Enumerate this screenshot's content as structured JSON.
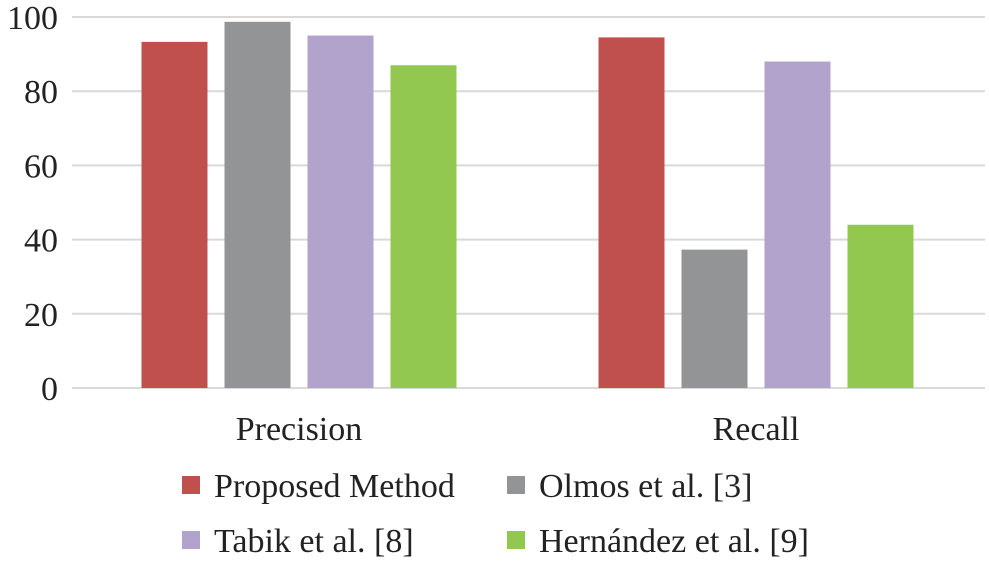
{
  "chart_data": {
    "type": "bar",
    "categories": [
      "Precision",
      "Recall"
    ],
    "series": [
      {
        "name": "Proposed Method",
        "color": "#c0504d",
        "values": [
          93.3,
          94.5
        ]
      },
      {
        "name": "Olmos et al. [3]",
        "color": "#929496",
        "values": [
          98.7,
          37.3
        ]
      },
      {
        "name": "Tabik et al. [8]",
        "color": "#b1a3cb",
        "values": [
          95.0,
          88.0
        ]
      },
      {
        "name": "Hernández et al. [9]",
        "color": "#92c850",
        "values": [
          87.0,
          44.0
        ]
      }
    ],
    "ylim": [
      0,
      100
    ],
    "yticks": [
      0,
      20,
      40,
      60,
      80,
      100
    ],
    "grid": true,
    "legend_position": "bottom",
    "title": "",
    "xlabel": "",
    "ylabel": ""
  }
}
